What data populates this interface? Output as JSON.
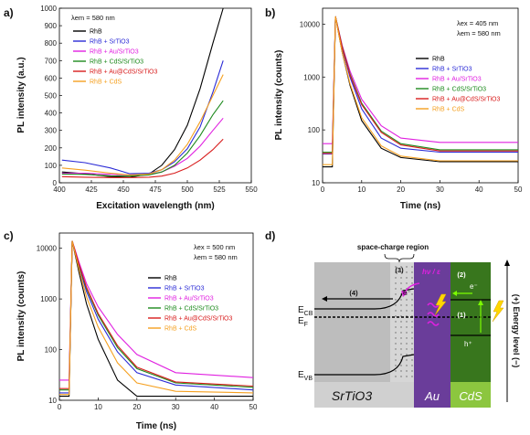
{
  "colors": {
    "RhB": "#000000",
    "RhB + SrTiO3": "#2b2bd6",
    "RhB + Au/SrTiO3": "#e020e0",
    "RhB + CdS/SrTiO3": "#1d8a1d",
    "RhB + Au@CdS/SrTiO3": "#d81c1c",
    "RhB + CdS": "#f5a020",
    "srtio3_gray": "#bdbdbd",
    "au_purple": "#6a3d9a",
    "cds_green": "#38761d"
  },
  "chart_data": [
    {
      "panel": "a)",
      "type": "line",
      "xlabel": "Excitation wavelength (nm)",
      "ylabel": "PL intensity (a.u.)",
      "xlim": [
        400,
        550
      ],
      "ylim": [
        0,
        1000
      ],
      "xticks": [
        400,
        425,
        450,
        475,
        500,
        525,
        550
      ],
      "yticks": [
        0,
        100,
        200,
        300,
        400,
        500,
        600,
        700,
        800,
        900,
        1000
      ],
      "annotation": "λem = 580 nm",
      "legend_position": "top-left",
      "series": [
        {
          "name": "RhB",
          "x": [
            402,
            420,
            440,
            455,
            470,
            480,
            490,
            500,
            510,
            520,
            528
          ],
          "y": [
            62,
            52,
            35,
            32,
            50,
            100,
            190,
            330,
            540,
            800,
            1000
          ]
        },
        {
          "name": "RhB + SrTiO3",
          "x": [
            402,
            420,
            440,
            455,
            470,
            480,
            490,
            500,
            510,
            520,
            528
          ],
          "y": [
            130,
            115,
            85,
            52,
            55,
            75,
            120,
            195,
            320,
            520,
            700
          ]
        },
        {
          "name": "RhB + Au/SrTiO3",
          "x": [
            402,
            420,
            440,
            455,
            470,
            480,
            490,
            500,
            510,
            520,
            528
          ],
          "y": [
            55,
            55,
            48,
            45,
            48,
            62,
            95,
            140,
            210,
            300,
            370
          ]
        },
        {
          "name": "RhB + CdS/SrTiO3",
          "x": [
            402,
            420,
            440,
            455,
            470,
            480,
            490,
            500,
            510,
            520,
            528
          ],
          "y": [
            50,
            48,
            40,
            38,
            45,
            62,
            100,
            170,
            270,
            390,
            470
          ]
        },
        {
          "name": "RhB + Au@CdS/SrTiO3",
          "x": [
            402,
            420,
            440,
            455,
            470,
            480,
            490,
            500,
            510,
            520,
            528
          ],
          "y": [
            35,
            32,
            30,
            30,
            32,
            38,
            55,
            85,
            130,
            190,
            250
          ]
        },
        {
          "name": "RhB + CdS",
          "x": [
            402,
            420,
            440,
            455,
            470,
            480,
            490,
            500,
            510,
            520,
            528
          ],
          "y": [
            85,
            72,
            55,
            45,
            50,
            75,
            130,
            220,
            350,
            500,
            620
          ]
        }
      ]
    },
    {
      "panel": "b)",
      "type": "line",
      "xlabel": "Time (ns)",
      "ylabel": "PL intensity (counts)",
      "xlim": [
        0,
        50
      ],
      "ylim": [
        10,
        20000
      ],
      "yscale": "log",
      "xticks": [
        0,
        10,
        20,
        30,
        40,
        50
      ],
      "yticks": [
        10,
        100,
        1000,
        10000
      ],
      "annotation": [
        "λex = 405 nm",
        "λem = 580 nm"
      ],
      "legend_position": "center-right",
      "series": [
        {
          "name": "RhB",
          "x": [
            0,
            2.5,
            3.3,
            5,
            7,
            10,
            15,
            20,
            30,
            50
          ],
          "y": [
            20,
            20,
            14000,
            3000,
            700,
            150,
            45,
            30,
            25,
            25
          ]
        },
        {
          "name": "RhB + SrTiO3",
          "x": [
            0,
            2.5,
            3.3,
            5,
            7,
            10,
            15,
            20,
            30,
            50
          ],
          "y": [
            35,
            35,
            14000,
            3500,
            1000,
            250,
            70,
            45,
            38,
            38
          ]
        },
        {
          "name": "RhB + Au/SrTiO3",
          "x": [
            0,
            2.5,
            3.3,
            5,
            7,
            10,
            15,
            20,
            30,
            50
          ],
          "y": [
            55,
            55,
            14000,
            4000,
            1300,
            380,
            120,
            70,
            58,
            58
          ]
        },
        {
          "name": "RhB + CdS/SrTiO3",
          "x": [
            0,
            2.5,
            3.3,
            5,
            7,
            10,
            15,
            20,
            30,
            50
          ],
          "y": [
            38,
            38,
            14000,
            3800,
            1150,
            320,
            95,
            55,
            42,
            42
          ]
        },
        {
          "name": "RhB + Au@CdS/SrTiO3",
          "x": [
            0,
            2.5,
            3.3,
            5,
            7,
            10,
            15,
            20,
            30,
            50
          ],
          "y": [
            36,
            36,
            14000,
            3700,
            1100,
            300,
            90,
            52,
            40,
            40
          ]
        },
        {
          "name": "RhB + CdS",
          "x": [
            0,
            2.5,
            3.3,
            5,
            7,
            10,
            15,
            20,
            30,
            50
          ],
          "y": [
            22,
            22,
            14000,
            3000,
            750,
            170,
            50,
            32,
            26,
            26
          ]
        }
      ]
    },
    {
      "panel": "c)",
      "type": "line",
      "xlabel": "Time (ns)",
      "ylabel": "PL intensity (counts)",
      "xlim": [
        0,
        50
      ],
      "ylim": [
        10,
        20000
      ],
      "yscale": "log",
      "xticks": [
        0,
        10,
        20,
        30,
        40,
        50
      ],
      "yticks": [
        10,
        100,
        1000,
        10000
      ],
      "annotation": [
        "λex = 500 nm",
        "λem = 580 nm"
      ],
      "legend_position": "center-right",
      "series": [
        {
          "name": "RhB",
          "x": [
            0,
            2.5,
            3.3,
            5,
            7,
            10,
            15,
            20,
            30,
            50
          ],
          "y": [
            12,
            12,
            14000,
            3500,
            800,
            160,
            25,
            12,
            12,
            12
          ]
        },
        {
          "name": "RhB + SrTiO3",
          "x": [
            0,
            2.5,
            3.3,
            5,
            7,
            10,
            15,
            20,
            30,
            50
          ],
          "y": [
            14,
            14,
            14000,
            4500,
            1400,
            400,
            90,
            35,
            20,
            16
          ]
        },
        {
          "name": "RhB + Au/SrTiO3",
          "x": [
            0,
            2.5,
            3.3,
            5,
            7,
            10,
            15,
            20,
            30,
            50
          ],
          "y": [
            25,
            25,
            14000,
            5500,
            2000,
            700,
            200,
            80,
            35,
            28
          ]
        },
        {
          "name": "RhB + CdS/SrTiO3",
          "x": [
            0,
            2.5,
            3.3,
            5,
            7,
            10,
            15,
            20,
            30,
            50
          ],
          "y": [
            16,
            16,
            14000,
            4800,
            1600,
            480,
            110,
            42,
            22,
            18
          ]
        },
        {
          "name": "RhB + Au@CdS/SrTiO3",
          "x": [
            0,
            2.5,
            3.3,
            5,
            7,
            10,
            15,
            20,
            30,
            50
          ],
          "y": [
            17,
            17,
            14000,
            5000,
            1700,
            520,
            120,
            45,
            23,
            19
          ]
        },
        {
          "name": "RhB + CdS",
          "x": [
            0,
            2.5,
            3.3,
            5,
            7,
            10,
            15,
            20,
            30,
            50
          ],
          "y": [
            13,
            13,
            14000,
            4000,
            1100,
            280,
            55,
            22,
            15,
            14
          ]
        }
      ]
    }
  ],
  "panel_labels": {
    "a": "a)",
    "b": "b)",
    "c": "c)",
    "d": "d)"
  },
  "diagram": {
    "title": "space-charge region",
    "materials": {
      "srtio3": "SrTiO3",
      "au": "Au",
      "cds": "CdS"
    },
    "levels": {
      "ecb": "E",
      "ecb_sub": "CB",
      "ef": "E",
      "ef_sub": "F",
      "evb": "E",
      "evb_sub": "VB"
    },
    "steps": {
      "s1": "(1)",
      "s2": "(2)",
      "s3": "(3)",
      "s4": "(4)"
    },
    "carriers": {
      "electron": "e⁻",
      "electron2": "e⁻",
      "hole": "h⁺"
    },
    "lspr": "hν / ε",
    "energy_axis": "(+) Energy level (−)"
  }
}
